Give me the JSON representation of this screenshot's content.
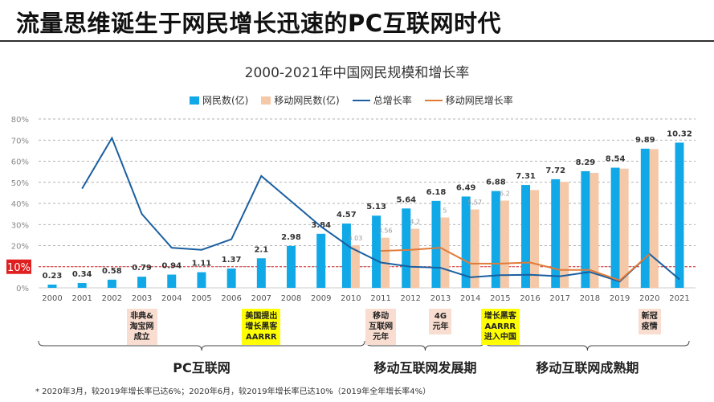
{
  "title": "流量思维诞生于网民增长迅速的PC互联网时代",
  "colors": {
    "netizens": "#10a8e6",
    "mobile": "#f5c8a8",
    "total_growth": "#1a5fa0",
    "mobile_growth": "#e07b39",
    "ten_line": "#e02020"
  },
  "chart_data": {
    "type": "bar+line",
    "title": "2000-2021年中国网民规模和增长率",
    "categories": [
      "2000",
      "2001",
      "2002",
      "2003",
      "2004",
      "2005",
      "2006",
      "2007",
      "2008",
      "2009",
      "2010",
      "2011",
      "2012",
      "2013",
      "2014",
      "2015",
      "2016",
      "2017",
      "2018",
      "2019",
      "2020",
      "2021"
    ],
    "y_ticks": [
      "0%",
      "10%",
      "20%",
      "30%",
      "40%",
      "50%",
      "60%",
      "70%",
      "80%"
    ],
    "ylim": [
      0,
      80
    ],
    "grid": true,
    "legend_position": "top",
    "highlight_line": {
      "value": 10,
      "label": "10%"
    },
    "series": [
      {
        "name": "网民数(亿)",
        "type": "bar",
        "values": [
          0.23,
          0.34,
          0.58,
          0.79,
          0.94,
          1.11,
          1.37,
          2.1,
          2.98,
          3.84,
          4.57,
          5.13,
          5.64,
          6.18,
          6.49,
          6.88,
          7.31,
          7.72,
          8.29,
          8.54,
          9.89,
          10.32
        ],
        "labels": [
          "0.23",
          "0.34",
          "0.58",
          "0.79",
          "0.94",
          "1.11",
          "1.37",
          "2.1",
          "2.98",
          "3.84",
          "4.57",
          "5.13",
          "5.64",
          "6.18",
          "6.49",
          "6.88",
          "7.31",
          "7.72",
          "8.29",
          "8.54",
          "9.89",
          "10.32"
        ]
      },
      {
        "name": "移动网民数(亿)",
        "type": "bar",
        "values": [
          null,
          null,
          null,
          null,
          null,
          null,
          null,
          null,
          null,
          null,
          3.03,
          3.56,
          4.2,
          5,
          5.57,
          6.2,
          6.95,
          7.53,
          8.17,
          8.47,
          9.86,
          null
        ],
        "labels": [
          "",
          "",
          "",
          "",
          "",
          "",
          "",
          "",
          "",
          "",
          "3.03",
          "3.56",
          "4.2",
          "5",
          "5.57",
          "6.2",
          "",
          "",
          "",
          "",
          "",
          ""
        ]
      },
      {
        "name": "总增长率",
        "type": "line",
        "values": [
          null,
          47,
          71,
          35,
          19,
          18,
          23,
          53,
          41,
          29,
          19,
          12,
          10,
          9.5,
          5,
          6,
          6.2,
          5.5,
          7.5,
          3,
          16,
          4
        ]
      },
      {
        "name": "移动网民增长率",
        "type": "line",
        "values": [
          null,
          null,
          null,
          null,
          null,
          null,
          null,
          null,
          null,
          null,
          null,
          17.5,
          18,
          19,
          11.5,
          11.5,
          12,
          8.5,
          8.5,
          3.5,
          16,
          null
        ]
      }
    ]
  },
  "events": [
    {
      "year": "2003",
      "text": [
        "非典&",
        "淘宝网",
        "成立"
      ],
      "style": "pink"
    },
    {
      "year": "2007",
      "text": [
        "美国提出",
        "增长黑客",
        "AARRR"
      ],
      "style": "yellow"
    },
    {
      "year": "2011",
      "text": [
        "移动",
        "互联网",
        "元年"
      ],
      "style": "pink"
    },
    {
      "year": "2013",
      "text": [
        "4G",
        "元年"
      ],
      "style": "pink"
    },
    {
      "year": "2015",
      "text": [
        "增长黑客",
        "AARRR",
        "进入中国"
      ],
      "style": "yellow"
    },
    {
      "year": "2020",
      "text": [
        "新冠",
        "疫情"
      ],
      "style": "pink"
    }
  ],
  "eras": [
    {
      "label": "PC互联网",
      "from": "2000",
      "to": "2011"
    },
    {
      "label": "移动互联网发展期",
      "from": "2011",
      "to": "2015"
    },
    {
      "label": "移动互联网成熟期",
      "from": "2015",
      "to": "2021"
    }
  ],
  "footnote": "* 2020年3月，较2019年增长率已达6%；2020年6月，较2019年增长率已达10%（2019年全年增长率4%）"
}
